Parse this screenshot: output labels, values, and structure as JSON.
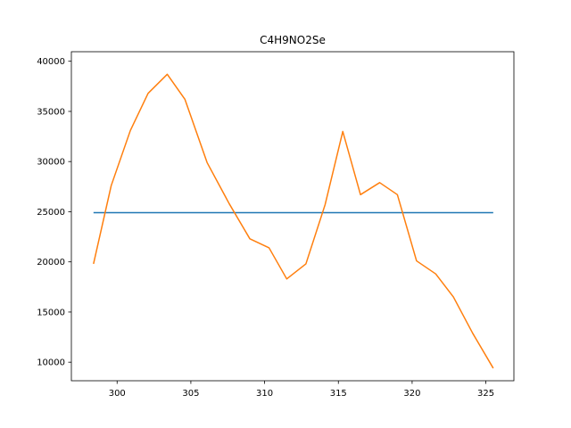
{
  "chart_data": {
    "type": "line",
    "title": "C4H9NO2Se",
    "xlabel": "",
    "ylabel": "",
    "xlim": [
      296.9,
      326.9
    ],
    "ylim": [
      8150,
      40950
    ],
    "xticks": [
      300,
      305,
      310,
      315,
      320,
      325
    ],
    "yticks": [
      10000,
      15000,
      20000,
      25000,
      30000,
      35000,
      40000
    ],
    "grid": false,
    "series": [
      {
        "color": "#1f77b4",
        "x": [
          298.4,
          325.5
        ],
        "y": [
          24900,
          24900
        ]
      },
      {
        "color": "#ff7f0e",
        "x": [
          298.4,
          299.6,
          300.9,
          302.1,
          303.4,
          304.6,
          306.1,
          307.6,
          309.0,
          310.3,
          311.5,
          312.8,
          314.1,
          315.3,
          316.5,
          317.8,
          319.0,
          320.3,
          321.6,
          322.8,
          324.1,
          325.5
        ],
        "y": [
          19800,
          27600,
          33100,
          36800,
          38700,
          36200,
          29900,
          25800,
          22300,
          21400,
          18300,
          19800,
          25700,
          33000,
          26700,
          27900,
          26700,
          20100,
          18800,
          16500,
          12900,
          9400
        ]
      }
    ]
  }
}
